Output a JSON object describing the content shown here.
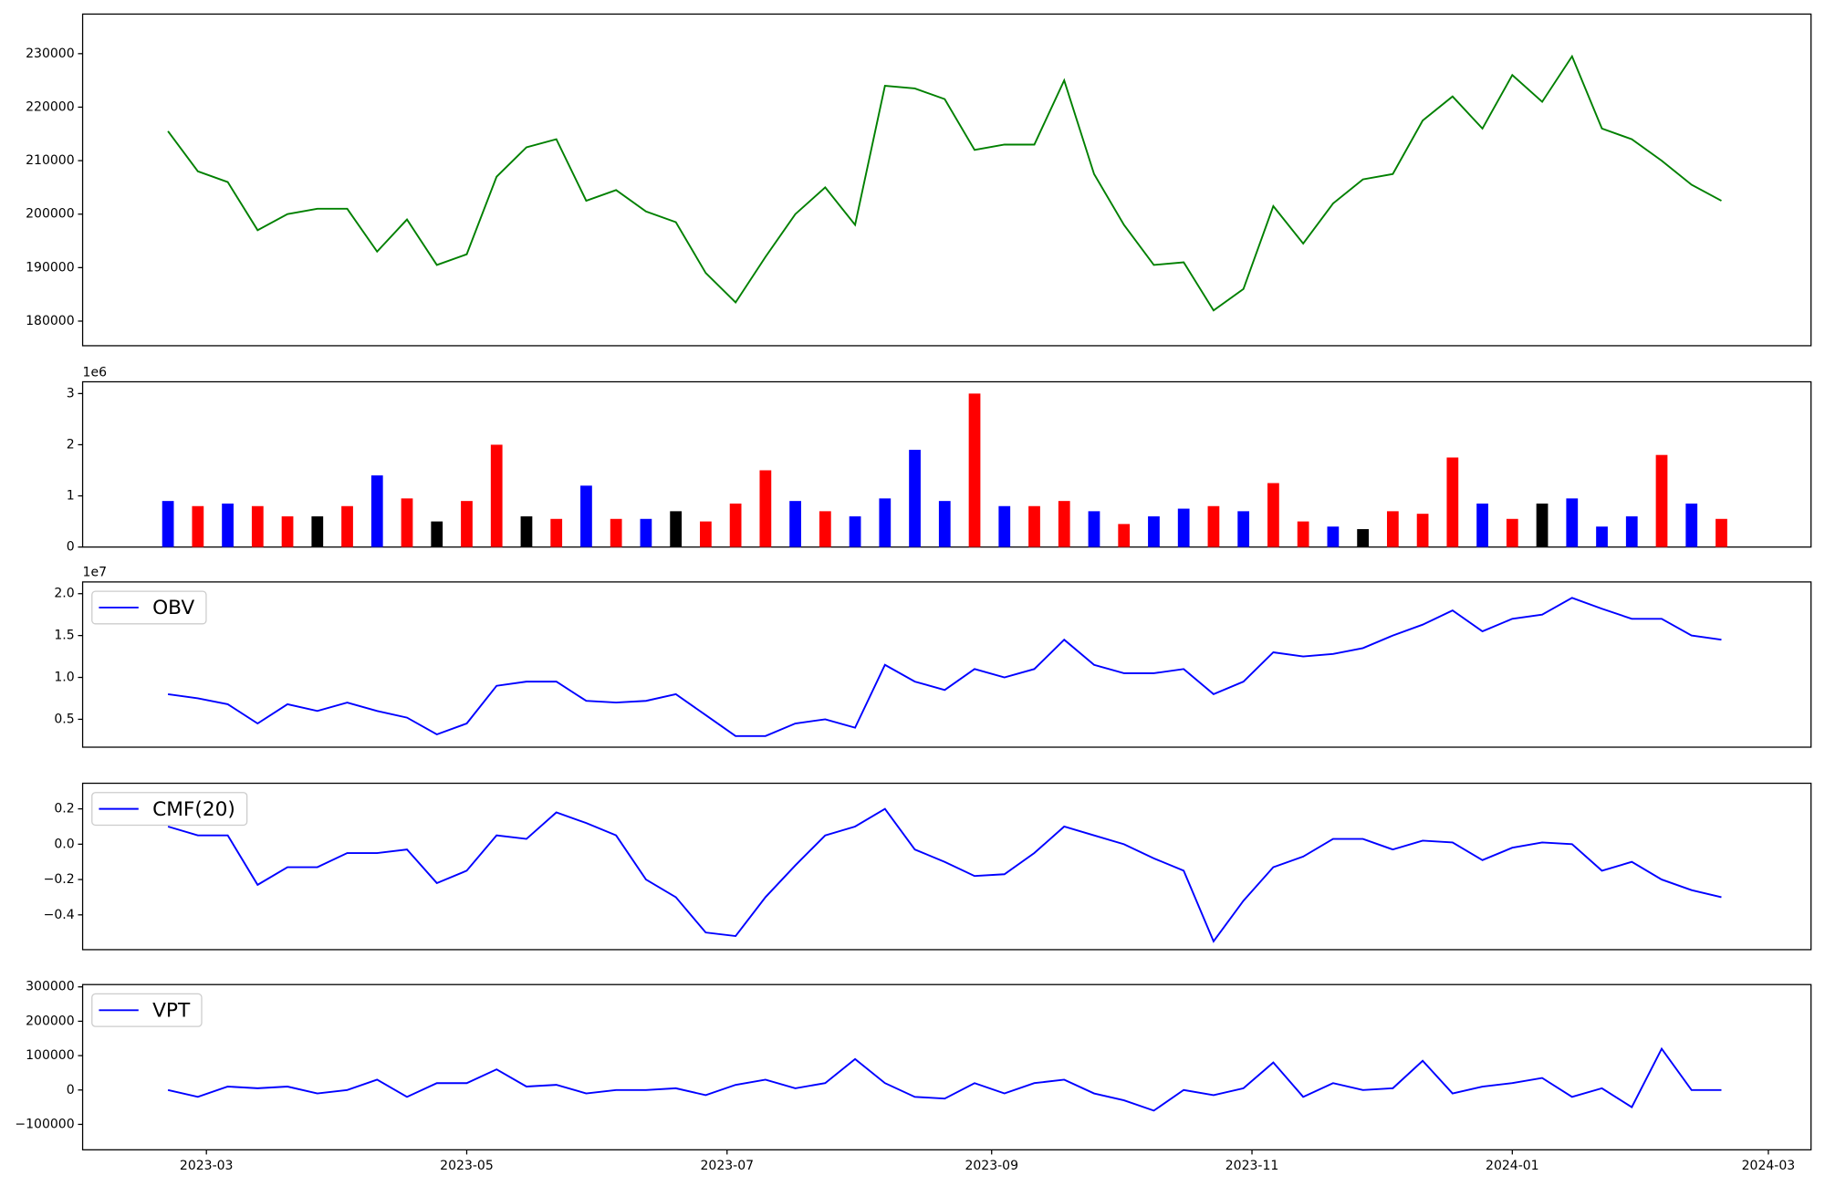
{
  "chart_data": [
    {
      "type": "line",
      "x": [
        "2023-02-20",
        "2023-02-27",
        "2023-03-06",
        "2023-03-13",
        "2023-03-20",
        "2023-03-27",
        "2023-04-03",
        "2023-04-10",
        "2023-04-17",
        "2023-04-24",
        "2023-05-01",
        "2023-05-08",
        "2023-05-15",
        "2023-05-22",
        "2023-05-29",
        "2023-06-05",
        "2023-06-12",
        "2023-06-19",
        "2023-06-26",
        "2023-07-03",
        "2023-07-10",
        "2023-07-17",
        "2023-07-24",
        "2023-07-31",
        "2023-08-07",
        "2023-08-14",
        "2023-08-21",
        "2023-08-28",
        "2023-09-04",
        "2023-09-11",
        "2023-09-18",
        "2023-09-25",
        "2023-10-02",
        "2023-10-09",
        "2023-10-16",
        "2023-10-23",
        "2023-10-30",
        "2023-11-06",
        "2023-11-13",
        "2023-11-20",
        "2023-11-27",
        "2023-12-04",
        "2023-12-11",
        "2023-12-18",
        "2023-12-25",
        "2024-01-01",
        "2024-01-08",
        "2024-01-15",
        "2024-01-22",
        "2024-01-29",
        "2024-02-05",
        "2024-02-12",
        "2024-02-19"
      ],
      "xlim": [
        "2023-01-31",
        "2024-03-11"
      ],
      "series": [
        {
          "color": "#008000",
          "values": [
            215500,
            208000,
            206000,
            197000,
            200000,
            201000,
            201000,
            193000,
            199000,
            190500,
            192500,
            207000,
            212500,
            214000,
            202500,
            204500,
            200500,
            198500,
            189000,
            183500,
            192000,
            200000,
            205000,
            198000,
            224000,
            223500,
            221500,
            212000,
            213000,
            213000,
            225000,
            207500,
            198000,
            190500,
            191000,
            182000,
            186000,
            201500,
            194500,
            202000,
            206500,
            207500,
            217500,
            222000,
            216000,
            226000,
            221000,
            229500,
            216000,
            214000,
            210000,
            205500,
            202500
          ]
        }
      ],
      "ylim": [
        175400,
        237400
      ],
      "yticks": [
        180000,
        190000,
        200000,
        210000,
        220000,
        230000
      ]
    },
    {
      "type": "bar",
      "x": [
        "2023-02-20",
        "2023-02-27",
        "2023-03-06",
        "2023-03-13",
        "2023-03-20",
        "2023-03-27",
        "2023-04-03",
        "2023-04-10",
        "2023-04-17",
        "2023-04-24",
        "2023-05-01",
        "2023-05-08",
        "2023-05-15",
        "2023-05-22",
        "2023-05-29",
        "2023-06-05",
        "2023-06-12",
        "2023-06-19",
        "2023-06-26",
        "2023-07-03",
        "2023-07-10",
        "2023-07-17",
        "2023-07-24",
        "2023-07-31",
        "2023-08-07",
        "2023-08-14",
        "2023-08-21",
        "2023-08-28",
        "2023-09-04",
        "2023-09-11",
        "2023-09-18",
        "2023-09-25",
        "2023-10-02",
        "2023-10-09",
        "2023-10-16",
        "2023-10-23",
        "2023-10-30",
        "2023-11-06",
        "2023-11-13",
        "2023-11-20",
        "2023-11-27",
        "2023-12-04",
        "2023-12-11",
        "2023-12-18",
        "2023-12-25",
        "2024-01-01",
        "2024-01-08",
        "2024-01-15",
        "2024-01-22",
        "2024-01-29",
        "2024-02-05",
        "2024-02-12",
        "2024-02-19"
      ],
      "xlim": [
        "2023-01-31",
        "2024-03-11"
      ],
      "values": [
        900000,
        800000,
        850000,
        800000,
        600000,
        600000,
        800000,
        1400000,
        950000,
        500000,
        900000,
        2000000,
        600000,
        550000,
        1200000,
        550000,
        550000,
        700000,
        500000,
        850000,
        1500000,
        900000,
        700000,
        600000,
        950000,
        1900000,
        900000,
        3000000,
        800000,
        800000,
        900000,
        700000,
        450000,
        600000,
        750000,
        800000,
        700000,
        1250000,
        500000,
        400000,
        350000,
        700000,
        650000,
        1750000,
        850000,
        550000,
        850000,
        950000,
        400000,
        600000,
        1800000,
        850000,
        550000
      ],
      "colors": [
        "blue",
        "red",
        "blue",
        "red",
        "red",
        "black",
        "red",
        "blue",
        "red",
        "black",
        "red",
        "red",
        "black",
        "red",
        "blue",
        "red",
        "blue",
        "black",
        "red",
        "red",
        "red",
        "blue",
        "red",
        "blue",
        "blue",
        "blue",
        "blue",
        "red",
        "blue",
        "red",
        "red",
        "blue",
        "red",
        "blue",
        "blue",
        "red",
        "blue",
        "red",
        "red",
        "blue",
        "black",
        "red",
        "red",
        "red",
        "blue",
        "red",
        "black",
        "blue",
        "blue",
        "blue",
        "red",
        "blue",
        "red"
      ],
      "ylim": [
        0,
        3230000
      ],
      "yticks": [
        0,
        {
          "value": 1000000,
          "label": "1"
        },
        {
          "value": 2000000,
          "label": "2"
        },
        {
          "value": 3000000,
          "label": "3"
        }
      ],
      "y_offset_label": "1e6"
    },
    {
      "type": "line",
      "x": [
        "2023-02-20",
        "2023-02-27",
        "2023-03-06",
        "2023-03-13",
        "2023-03-20",
        "2023-03-27",
        "2023-04-03",
        "2023-04-10",
        "2023-04-17",
        "2023-04-24",
        "2023-05-01",
        "2023-05-08",
        "2023-05-15",
        "2023-05-22",
        "2023-05-29",
        "2023-06-05",
        "2023-06-12",
        "2023-06-19",
        "2023-06-26",
        "2023-07-03",
        "2023-07-10",
        "2023-07-17",
        "2023-07-24",
        "2023-07-31",
        "2023-08-07",
        "2023-08-14",
        "2023-08-21",
        "2023-08-28",
        "2023-09-04",
        "2023-09-11",
        "2023-09-18",
        "2023-09-25",
        "2023-10-02",
        "2023-10-09",
        "2023-10-16",
        "2023-10-23",
        "2023-10-30",
        "2023-11-06",
        "2023-11-13",
        "2023-11-20",
        "2023-11-27",
        "2023-12-04",
        "2023-12-11",
        "2023-12-18",
        "2023-12-25",
        "2024-01-01",
        "2024-01-08",
        "2024-01-15",
        "2024-01-22",
        "2024-01-29",
        "2024-02-05",
        "2024-02-12",
        "2024-02-19"
      ],
      "xlim": [
        "2023-01-31",
        "2024-03-11"
      ],
      "series": [
        {
          "name": "OBV",
          "color": "#0000ff",
          "values": [
            8000000,
            7500000,
            6800000,
            4500000,
            6800000,
            6000000,
            7000000,
            6000000,
            5200000,
            3200000,
            4500000,
            9000000,
            9500000,
            9500000,
            7200000,
            7000000,
            7200000,
            8000000,
            5500000,
            3000000,
            3000000,
            4500000,
            5000000,
            4000000,
            11500000,
            9500000,
            8500000,
            11000000,
            10000000,
            11000000,
            14500000,
            11500000,
            10500000,
            10500000,
            11000000,
            8000000,
            9500000,
            13000000,
            12500000,
            12800000,
            13500000,
            15000000,
            16300000,
            18000000,
            15500000,
            17000000,
            17500000,
            19500000,
            18200000,
            17000000,
            17000000,
            15000000,
            14500000
          ]
        }
      ],
      "ylim": [
        1670000,
        21400000
      ],
      "yticks": [
        {
          "value": 5000000,
          "label": "0.5"
        },
        {
          "value": 10000000,
          "label": "1.0"
        },
        {
          "value": 15000000,
          "label": "1.5"
        },
        {
          "value": 20000000,
          "label": "2.0"
        }
      ],
      "y_offset_label": "1e7",
      "legend": "upper left"
    },
    {
      "type": "line",
      "x": [
        "2023-02-20",
        "2023-02-27",
        "2023-03-06",
        "2023-03-13",
        "2023-03-20",
        "2023-03-27",
        "2023-04-03",
        "2023-04-10",
        "2023-04-17",
        "2023-04-24",
        "2023-05-01",
        "2023-05-08",
        "2023-05-15",
        "2023-05-22",
        "2023-05-29",
        "2023-06-05",
        "2023-06-12",
        "2023-06-19",
        "2023-06-26",
        "2023-07-03",
        "2023-07-10",
        "2023-07-17",
        "2023-07-24",
        "2023-07-31",
        "2023-08-07",
        "2023-08-14",
        "2023-08-21",
        "2023-08-28",
        "2023-09-04",
        "2023-09-11",
        "2023-09-18",
        "2023-09-25",
        "2023-10-02",
        "2023-10-09",
        "2023-10-16",
        "2023-10-23",
        "2023-10-30",
        "2023-11-06",
        "2023-11-13",
        "2023-11-20",
        "2023-11-27",
        "2023-12-04",
        "2023-12-11",
        "2023-12-18",
        "2023-12-25",
        "2024-01-01",
        "2024-01-08",
        "2024-01-15",
        "2024-01-22",
        "2024-01-29",
        "2024-02-05",
        "2024-02-12",
        "2024-02-19"
      ],
      "xlim": [
        "2023-01-31",
        "2024-03-11"
      ],
      "series": [
        {
          "name": "CMF(20)",
          "color": "#0000ff",
          "values": [
            0.1,
            0.05,
            0.05,
            -0.23,
            -0.13,
            -0.13,
            -0.05,
            -0.05,
            -0.03,
            -0.22,
            -0.15,
            0.05,
            0.03,
            0.18,
            0.12,
            0.05,
            -0.2,
            -0.3,
            -0.5,
            -0.52,
            -0.3,
            -0.12,
            0.05,
            0.1,
            0.2,
            -0.03,
            -0.1,
            -0.18,
            -0.17,
            -0.05,
            0.1,
            0.05,
            0,
            -0.08,
            -0.15,
            -0.55,
            -0.32,
            -0.13,
            -0.07,
            0.03,
            0.03,
            -0.03,
            0.02,
            0.01,
            -0.09,
            -0.02,
            0.01,
            0,
            -0.15,
            -0.1,
            -0.2,
            -0.26,
            -0.3
          ]
        }
      ],
      "ylim": [
        -0.597,
        0.345
      ],
      "yticks": [
        {
          "value": -0.4,
          "label": "−0.4"
        },
        {
          "value": -0.2,
          "label": "−0.2"
        },
        {
          "value": 0,
          "label": "0.0"
        },
        {
          "value": 0.2,
          "label": "0.2"
        }
      ],
      "legend": "upper left"
    },
    {
      "type": "line",
      "x": [
        "2023-02-20",
        "2023-02-27",
        "2023-03-06",
        "2023-03-13",
        "2023-03-20",
        "2023-03-27",
        "2023-04-03",
        "2023-04-10",
        "2023-04-17",
        "2023-04-24",
        "2023-05-01",
        "2023-05-08",
        "2023-05-15",
        "2023-05-22",
        "2023-05-29",
        "2023-06-05",
        "2023-06-12",
        "2023-06-19",
        "2023-06-26",
        "2023-07-03",
        "2023-07-10",
        "2023-07-17",
        "2023-07-24",
        "2023-07-31",
        "2023-08-07",
        "2023-08-14",
        "2023-08-21",
        "2023-08-28",
        "2023-09-04",
        "2023-09-11",
        "2023-09-18",
        "2023-09-25",
        "2023-10-02",
        "2023-10-09",
        "2023-10-16",
        "2023-10-23",
        "2023-10-30",
        "2023-11-06",
        "2023-11-13",
        "2023-11-20",
        "2023-11-27",
        "2023-12-04",
        "2023-12-11",
        "2023-12-18",
        "2023-12-25",
        "2024-01-01",
        "2024-01-08",
        "2024-01-15",
        "2024-01-22",
        "2024-01-29",
        "2024-02-05",
        "2024-02-12",
        "2024-02-19"
      ],
      "xlim": [
        "2023-01-31",
        "2024-03-11"
      ],
      "series": [
        {
          "name": "VPT",
          "color": "#0000ff",
          "values": [
            0,
            -20000,
            10000,
            5000,
            10000,
            -10000,
            0,
            30000,
            -20000,
            20000,
            20000,
            60000,
            10000,
            15000,
            -10000,
            0,
            0,
            5000,
            -15000,
            15000,
            30000,
            5000,
            20000,
            90000,
            20000,
            -20000,
            -25000,
            20000,
            -10000,
            20000,
            30000,
            -10000,
            -30000,
            -60000,
            0,
            -15000,
            5000,
            80000,
            -20000,
            20000,
            0,
            5000,
            85000,
            -10000,
            10000,
            20000,
            35000,
            -20000,
            5000,
            -50000,
            120000,
            0,
            0
          ]
        }
      ],
      "ylim": [
        -174000,
        306700
      ],
      "yticks": [
        {
          "value": -100000,
          "label": "−100000"
        },
        0,
        100000,
        200000,
        300000
      ],
      "xticks": [
        {
          "value": "2023-03-01",
          "label": "2023-03"
        },
        {
          "value": "2023-05-01",
          "label": "2023-05"
        },
        {
          "value": "2023-07-01",
          "label": "2023-07"
        },
        {
          "value": "2023-09-01",
          "label": "2023-09"
        },
        {
          "value": "2023-11-01",
          "label": "2023-11"
        },
        {
          "value": "2024-01-01",
          "label": "2024-01"
        },
        {
          "value": "2024-03-01",
          "label": "2024-03"
        }
      ],
      "legend": "upper left"
    }
  ]
}
